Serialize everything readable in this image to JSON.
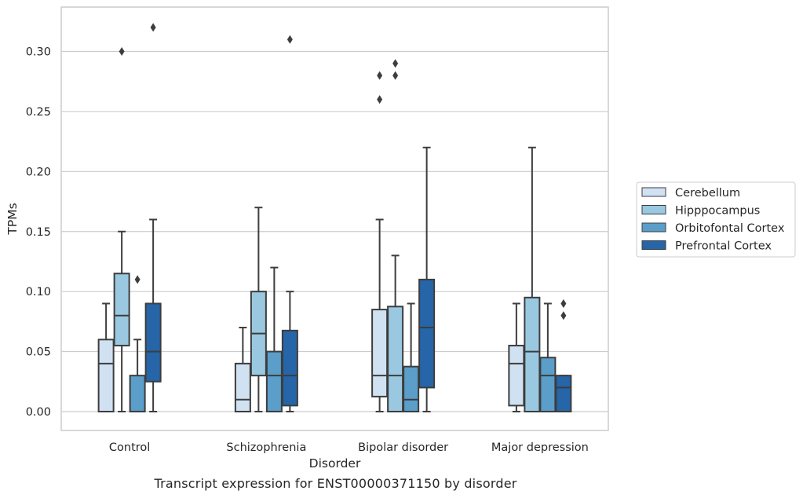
{
  "caption": "Transcript expression for ENST00000371150 by disorder",
  "chart_data": {
    "type": "boxplot",
    "xlabel": "Disorder",
    "ylabel": "TPMs",
    "ylim": [
      -0.016,
      0.337
    ],
    "yticks": [
      0.0,
      0.05,
      0.1,
      0.15,
      0.2,
      0.25,
      0.3
    ],
    "ytick_labels": [
      "0.00",
      "0.05",
      "0.10",
      "0.15",
      "0.20",
      "0.25",
      "0.30"
    ],
    "grid": "horizontal",
    "legend_position": "right",
    "categories": [
      "Control",
      "Schizophrenia",
      "Bipolar disorder",
      "Major depression"
    ],
    "series": [
      {
        "name": "Cerebellum",
        "color": "#d0e1f2",
        "boxes": [
          {
            "whisker_low": 0.0,
            "q1": 0.0,
            "median": 0.04,
            "q3": 0.06,
            "whisker_high": 0.09,
            "outliers": []
          },
          {
            "whisker_low": 0.0,
            "q1": 0.0,
            "median": 0.01,
            "q3": 0.04,
            "whisker_high": 0.07,
            "outliers": []
          },
          {
            "whisker_low": 0.0,
            "q1": 0.0125,
            "median": 0.03,
            "q3": 0.085,
            "whisker_high": 0.16,
            "outliers": [
              0.26,
              0.28
            ]
          },
          {
            "whisker_low": 0.0,
            "q1": 0.005,
            "median": 0.04,
            "q3": 0.055,
            "whisker_high": 0.09,
            "outliers": []
          }
        ]
      },
      {
        "name": "Hipppocampus",
        "color": "#9ac8e0",
        "boxes": [
          {
            "whisker_low": 0.0,
            "q1": 0.055,
            "median": 0.08,
            "q3": 0.115,
            "whisker_high": 0.15,
            "outliers": [
              0.3
            ]
          },
          {
            "whisker_low": 0.0,
            "q1": 0.03,
            "median": 0.065,
            "q3": 0.1,
            "whisker_high": 0.17,
            "outliers": []
          },
          {
            "whisker_low": 0.0,
            "q1": 0.0,
            "median": 0.03,
            "q3": 0.0875,
            "whisker_high": 0.13,
            "outliers": [
              0.28,
              0.29
            ]
          },
          {
            "whisker_low": 0.0,
            "q1": 0.0,
            "median": 0.05,
            "q3": 0.095,
            "whisker_high": 0.22,
            "outliers": []
          }
        ]
      },
      {
        "name": "Orbitofontal Cortex",
        "color": "#5a9ec9",
        "boxes": [
          {
            "whisker_low": 0.0,
            "q1": 0.0,
            "median": 0.0,
            "q3": 0.03,
            "whisker_high": 0.06,
            "outliers": [
              0.11
            ]
          },
          {
            "whisker_low": 0.0,
            "q1": 0.0,
            "median": 0.03,
            "q3": 0.05,
            "whisker_high": 0.12,
            "outliers": []
          },
          {
            "whisker_low": 0.0,
            "q1": 0.0,
            "median": 0.01,
            "q3": 0.0375,
            "whisker_high": 0.09,
            "outliers": []
          },
          {
            "whisker_low": 0.0,
            "q1": 0.0,
            "median": 0.03,
            "q3": 0.045,
            "whisker_high": 0.09,
            "outliers": []
          }
        ]
      },
      {
        "name": "Prefrontal Cortex",
        "color": "#2565a8",
        "boxes": [
          {
            "whisker_low": 0.0,
            "q1": 0.025,
            "median": 0.05,
            "q3": 0.09,
            "whisker_high": 0.16,
            "outliers": [
              0.32
            ]
          },
          {
            "whisker_low": 0.0,
            "q1": 0.005,
            "median": 0.03,
            "q3": 0.0675,
            "whisker_high": 0.1,
            "outliers": [
              0.31
            ]
          },
          {
            "whisker_low": 0.0,
            "q1": 0.02,
            "median": 0.07,
            "q3": 0.11,
            "whisker_high": 0.22,
            "outliers": []
          },
          {
            "whisker_low": 0.0,
            "q1": 0.0,
            "median": 0.02,
            "q3": 0.03,
            "whisker_high": 0.03,
            "outliers": [
              0.08,
              0.09
            ]
          }
        ]
      }
    ]
  }
}
